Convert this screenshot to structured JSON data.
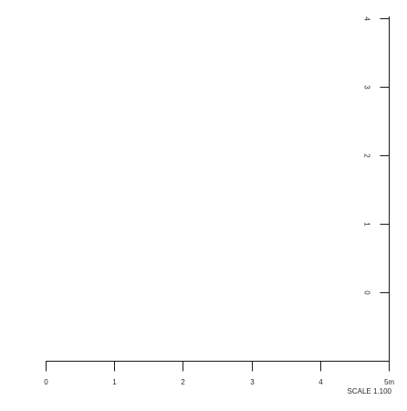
{
  "scale_bar": {
    "caption": "SCALE 1.100",
    "horizontal_ticks": [
      {
        "value": 0,
        "label": "0"
      },
      {
        "value": 1,
        "label": "1"
      },
      {
        "value": 2,
        "label": "2"
      },
      {
        "value": 3,
        "label": "3"
      },
      {
        "value": 4,
        "label": "4"
      },
      {
        "value": 5,
        "label": "5m"
      }
    ],
    "vertical_ticks": [
      {
        "value": 0,
        "label": "0"
      },
      {
        "value": 1,
        "label": "1"
      },
      {
        "value": 2,
        "label": "2"
      },
      {
        "value": 3,
        "label": "3"
      },
      {
        "value": 4,
        "label": "4"
      }
    ]
  }
}
